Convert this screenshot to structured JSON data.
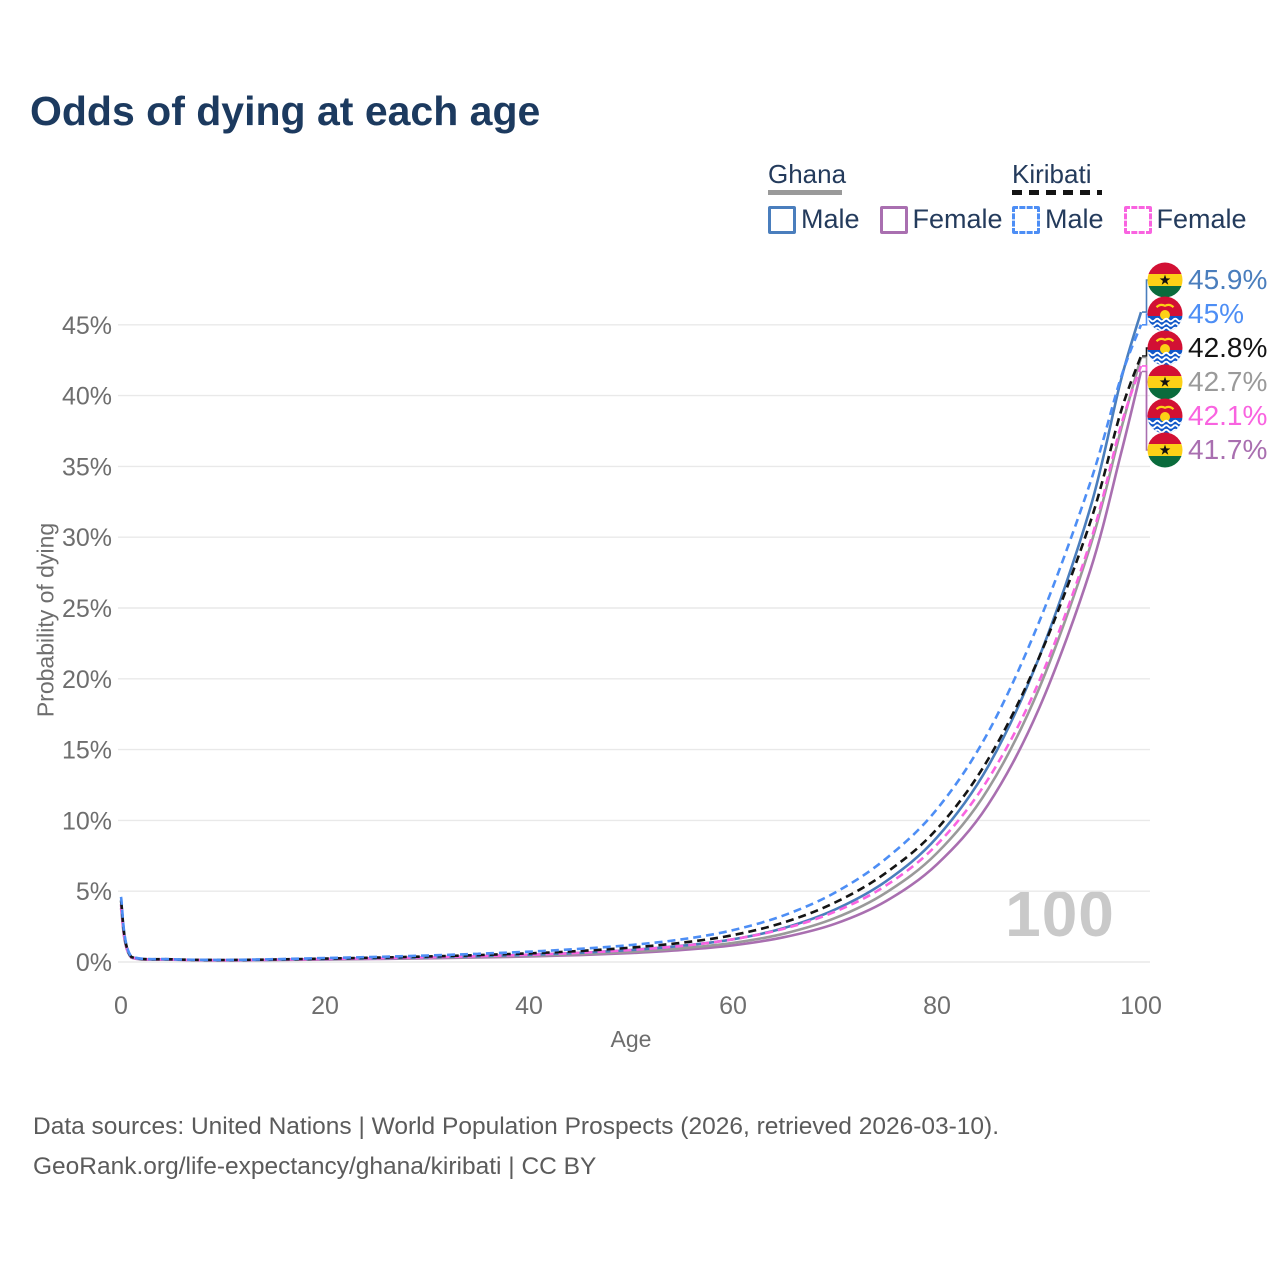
{
  "title": "Odds of dying at each age",
  "watermark": "100",
  "colors": {
    "title": "#1c3a5f",
    "axis_text": "#6e6e6e",
    "grid": "#e9e9e9",
    "footer_text": "#5b5b5b",
    "watermark": "#c9c9c9",
    "ghana_male": "#4a7ebd",
    "ghana_female": "#a96fb0",
    "ghana_all": "#9a9a9a",
    "kiribati_male": "#4d8ef5",
    "kiribati_female": "#f963e0",
    "kiribati_all": "#141414"
  },
  "legend": {
    "ghana": {
      "label": "Ghana",
      "male": "Male",
      "female": "Female"
    },
    "kiribati": {
      "label": "Kiribati",
      "male": "Male",
      "female": "Female"
    }
  },
  "axes": {
    "y_label": "Probability of dying",
    "x_label": "Age"
  },
  "end_labels": [
    {
      "series": "ghana_male",
      "text": "45.9%",
      "color": "#4a7ebd",
      "flag": "ghana"
    },
    {
      "series": "kiribati_male",
      "text": "45%",
      "color": "#4d8ef5",
      "flag": "kiribati"
    },
    {
      "series": "kiribati_all",
      "text": "42.8%",
      "color": "#141414",
      "flag": "kiribati"
    },
    {
      "series": "ghana_all",
      "text": "42.7%",
      "color": "#9a9a9a",
      "flag": "ghana"
    },
    {
      "series": "kiribati_female",
      "text": "42.1%",
      "color": "#f963e0",
      "flag": "kiribati"
    },
    {
      "series": "ghana_female",
      "text": "41.7%",
      "color": "#a96fb0",
      "flag": "ghana"
    }
  ],
  "footer": {
    "line1": "Data sources: United Nations | World Population Prospects (2026, retrieved 2026-03-10).",
    "line2": "GeoRank.org/life-expectancy/ghana/kiribati | CC BY"
  },
  "chart_data": {
    "type": "line",
    "title": "Odds of dying at each age",
    "xlabel": "Age",
    "ylabel": "Probability of dying",
    "xlim": [
      0,
      100
    ],
    "ylim": [
      0,
      47
    ],
    "grid": true,
    "x_ticks": [
      0,
      20,
      40,
      60,
      80,
      100
    ],
    "y_ticks": [
      0,
      5,
      10,
      15,
      20,
      25,
      30,
      35,
      40,
      45
    ],
    "y_tick_suffix": "%",
    "legend_position": "top-right",
    "ages": [
      0,
      1,
      5,
      10,
      15,
      20,
      25,
      30,
      35,
      40,
      45,
      50,
      55,
      60,
      65,
      70,
      75,
      80,
      85,
      90,
      95,
      98,
      100
    ],
    "series": [
      {
        "key": "ghana_female",
        "name": "Ghana Female",
        "color": "#a96fb0",
        "dashed": false,
        "values": [
          3.8,
          0.31,
          0.16,
          0.11,
          0.14,
          0.17,
          0.21,
          0.26,
          0.32,
          0.39,
          0.49,
          0.63,
          0.85,
          1.18,
          1.75,
          2.7,
          4.3,
          6.9,
          11.1,
          17.9,
          27.6,
          35.8,
          41.7
        ]
      },
      {
        "key": "ghana_all",
        "name": "Ghana",
        "color": "#9a9a9a",
        "dashed": false,
        "values": [
          4.1,
          0.33,
          0.17,
          0.12,
          0.15,
          0.19,
          0.24,
          0.29,
          0.36,
          0.44,
          0.56,
          0.72,
          0.97,
          1.35,
          2.0,
          3.1,
          4.9,
          7.7,
          12.2,
          19.3,
          29.3,
          37.5,
          42.7
        ]
      },
      {
        "key": "ghana_male",
        "name": "Ghana Male",
        "color": "#4a7ebd",
        "dashed": false,
        "values": [
          4.4,
          0.36,
          0.18,
          0.13,
          0.16,
          0.21,
          0.27,
          0.33,
          0.41,
          0.51,
          0.65,
          0.85,
          1.15,
          1.6,
          2.4,
          3.7,
          5.7,
          8.8,
          13.8,
          21.5,
          32.0,
          41.0,
          45.9
        ]
      },
      {
        "key": "kiribati_female",
        "name": "Kiribati Female",
        "color": "#f963e0",
        "dashed": true,
        "values": [
          4.0,
          0.34,
          0.17,
          0.13,
          0.16,
          0.21,
          0.27,
          0.33,
          0.41,
          0.51,
          0.65,
          0.85,
          1.14,
          1.6,
          2.35,
          3.55,
          5.4,
          8.3,
          12.9,
          19.8,
          29.6,
          37.8,
          42.1
        ]
      },
      {
        "key": "kiribati_all",
        "name": "Kiribati",
        "color": "#141414",
        "dashed": true,
        "values": [
          4.3,
          0.37,
          0.19,
          0.14,
          0.18,
          0.24,
          0.31,
          0.39,
          0.49,
          0.61,
          0.78,
          1.02,
          1.36,
          1.9,
          2.8,
          4.2,
          6.3,
          9.4,
          14.3,
          21.5,
          31.0,
          38.8,
          42.8
        ]
      },
      {
        "key": "kiribati_male",
        "name": "Kiribati Male",
        "color": "#4d8ef5",
        "dashed": true,
        "values": [
          4.6,
          0.4,
          0.2,
          0.15,
          0.2,
          0.28,
          0.36,
          0.46,
          0.58,
          0.73,
          0.93,
          1.2,
          1.6,
          2.25,
          3.3,
          4.9,
          7.3,
          10.8,
          16.2,
          24.0,
          33.8,
          41.2,
          45.0
        ]
      }
    ]
  }
}
